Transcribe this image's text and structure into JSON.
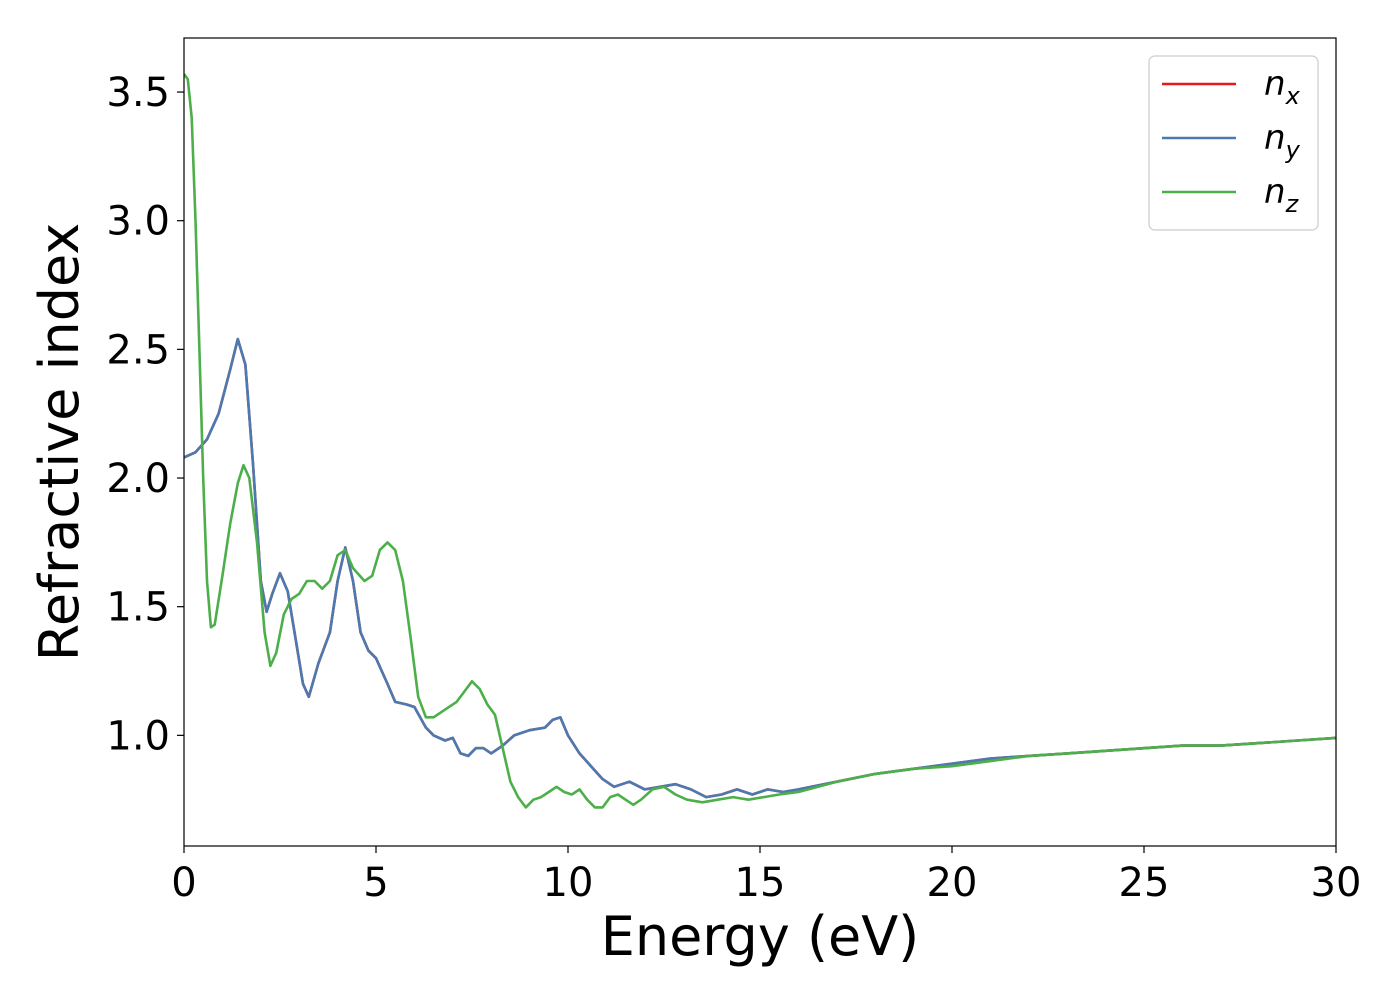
{
  "chart_data": {
    "type": "line",
    "title": "",
    "xlabel": "Energy (eV)",
    "ylabel": "Refractive index",
    "xlim": [
      0,
      30
    ],
    "ylim": [
      0.57,
      3.71
    ],
    "xticks": [
      0,
      5,
      10,
      15,
      20,
      25,
      30
    ],
    "xtick_labels": [
      "0",
      "5",
      "10",
      "15",
      "20",
      "25",
      "30"
    ],
    "yticks": [
      1.0,
      1.5,
      2.0,
      2.5,
      3.0,
      3.5
    ],
    "ytick_labels": [
      "1.0",
      "1.5",
      "2.0",
      "2.5",
      "3.0",
      "3.5"
    ],
    "grid": false,
    "legend_position": "top-right",
    "series": [
      {
        "name": "n_x",
        "label_base": "n",
        "label_sub": "x",
        "color": "#e41a1c",
        "points": [
          [
            0,
            2.08
          ],
          [
            0.3,
            2.1
          ],
          [
            0.6,
            2.15
          ],
          [
            0.9,
            2.25
          ],
          [
            1.2,
            2.42
          ],
          [
            1.4,
            2.54
          ],
          [
            1.6,
            2.44
          ],
          [
            1.8,
            2.05
          ],
          [
            2.0,
            1.6
          ],
          [
            2.15,
            1.48
          ],
          [
            2.3,
            1.55
          ],
          [
            2.5,
            1.63
          ],
          [
            2.7,
            1.56
          ],
          [
            2.9,
            1.38
          ],
          [
            3.1,
            1.2
          ],
          [
            3.25,
            1.15
          ],
          [
            3.5,
            1.28
          ],
          [
            3.8,
            1.4
          ],
          [
            4.0,
            1.6
          ],
          [
            4.2,
            1.73
          ],
          [
            4.4,
            1.6
          ],
          [
            4.6,
            1.4
          ],
          [
            4.8,
            1.33
          ],
          [
            5.0,
            1.3
          ],
          [
            5.3,
            1.2
          ],
          [
            5.5,
            1.13
          ],
          [
            5.8,
            1.12
          ],
          [
            6.0,
            1.11
          ],
          [
            6.3,
            1.03
          ],
          [
            6.5,
            1.0
          ],
          [
            6.8,
            0.98
          ],
          [
            7.0,
            0.99
          ],
          [
            7.2,
            0.93
          ],
          [
            7.4,
            0.92
          ],
          [
            7.6,
            0.95
          ],
          [
            7.8,
            0.95
          ],
          [
            8.0,
            0.93
          ],
          [
            8.3,
            0.96
          ],
          [
            8.6,
            1.0
          ],
          [
            9.0,
            1.02
          ],
          [
            9.4,
            1.03
          ],
          [
            9.6,
            1.06
          ],
          [
            9.8,
            1.07
          ],
          [
            10.0,
            1.0
          ],
          [
            10.3,
            0.93
          ],
          [
            10.6,
            0.88
          ],
          [
            10.9,
            0.83
          ],
          [
            11.2,
            0.8
          ],
          [
            11.6,
            0.82
          ],
          [
            12.0,
            0.79
          ],
          [
            12.4,
            0.8
          ],
          [
            12.8,
            0.81
          ],
          [
            13.2,
            0.79
          ],
          [
            13.6,
            0.76
          ],
          [
            14.0,
            0.77
          ],
          [
            14.4,
            0.79
          ],
          [
            14.8,
            0.77
          ],
          [
            15.2,
            0.79
          ],
          [
            15.6,
            0.78
          ],
          [
            16.0,
            0.79
          ],
          [
            17.0,
            0.82
          ],
          [
            18.0,
            0.85
          ],
          [
            19.0,
            0.87
          ],
          [
            20.0,
            0.89
          ],
          [
            21.0,
            0.91
          ],
          [
            22.0,
            0.92
          ],
          [
            23.0,
            0.93
          ],
          [
            24.0,
            0.94
          ],
          [
            25.0,
            0.95
          ],
          [
            26.0,
            0.96
          ],
          [
            27.0,
            0.96
          ],
          [
            28.0,
            0.97
          ],
          [
            29.0,
            0.98
          ],
          [
            30.0,
            0.99
          ]
        ]
      },
      {
        "name": "n_y",
        "label_base": "n",
        "label_sub": "y",
        "color": "#4a7ab0",
        "points": [
          [
            0,
            2.08
          ],
          [
            0.3,
            2.1
          ],
          [
            0.6,
            2.15
          ],
          [
            0.9,
            2.25
          ],
          [
            1.2,
            2.42
          ],
          [
            1.4,
            2.54
          ],
          [
            1.6,
            2.44
          ],
          [
            1.8,
            2.05
          ],
          [
            2.0,
            1.6
          ],
          [
            2.15,
            1.48
          ],
          [
            2.3,
            1.55
          ],
          [
            2.5,
            1.63
          ],
          [
            2.7,
            1.56
          ],
          [
            2.9,
            1.38
          ],
          [
            3.1,
            1.2
          ],
          [
            3.25,
            1.15
          ],
          [
            3.5,
            1.28
          ],
          [
            3.8,
            1.4
          ],
          [
            4.0,
            1.6
          ],
          [
            4.2,
            1.73
          ],
          [
            4.4,
            1.6
          ],
          [
            4.6,
            1.4
          ],
          [
            4.8,
            1.33
          ],
          [
            5.0,
            1.3
          ],
          [
            5.3,
            1.2
          ],
          [
            5.5,
            1.13
          ],
          [
            5.8,
            1.12
          ],
          [
            6.0,
            1.11
          ],
          [
            6.3,
            1.03
          ],
          [
            6.5,
            1.0
          ],
          [
            6.8,
            0.98
          ],
          [
            7.0,
            0.99
          ],
          [
            7.2,
            0.93
          ],
          [
            7.4,
            0.92
          ],
          [
            7.6,
            0.95
          ],
          [
            7.8,
            0.95
          ],
          [
            8.0,
            0.93
          ],
          [
            8.3,
            0.96
          ],
          [
            8.6,
            1.0
          ],
          [
            9.0,
            1.02
          ],
          [
            9.4,
            1.03
          ],
          [
            9.6,
            1.06
          ],
          [
            9.8,
            1.07
          ],
          [
            10.0,
            1.0
          ],
          [
            10.3,
            0.93
          ],
          [
            10.6,
            0.88
          ],
          [
            10.9,
            0.83
          ],
          [
            11.2,
            0.8
          ],
          [
            11.6,
            0.82
          ],
          [
            12.0,
            0.79
          ],
          [
            12.4,
            0.8
          ],
          [
            12.8,
            0.81
          ],
          [
            13.2,
            0.79
          ],
          [
            13.6,
            0.76
          ],
          [
            14.0,
            0.77
          ],
          [
            14.4,
            0.79
          ],
          [
            14.8,
            0.77
          ],
          [
            15.2,
            0.79
          ],
          [
            15.6,
            0.78
          ],
          [
            16.0,
            0.79
          ],
          [
            17.0,
            0.82
          ],
          [
            18.0,
            0.85
          ],
          [
            19.0,
            0.87
          ],
          [
            20.0,
            0.89
          ],
          [
            21.0,
            0.91
          ],
          [
            22.0,
            0.92
          ],
          [
            23.0,
            0.93
          ],
          [
            24.0,
            0.94
          ],
          [
            25.0,
            0.95
          ],
          [
            26.0,
            0.96
          ],
          [
            27.0,
            0.96
          ],
          [
            28.0,
            0.97
          ],
          [
            29.0,
            0.98
          ],
          [
            30.0,
            0.99
          ]
        ]
      },
      {
        "name": "n_z",
        "label_base": "n",
        "label_sub": "z",
        "color": "#4daf4a",
        "points": [
          [
            0,
            3.57
          ],
          [
            0.1,
            3.55
          ],
          [
            0.2,
            3.4
          ],
          [
            0.3,
            3.0
          ],
          [
            0.4,
            2.5
          ],
          [
            0.5,
            2.0
          ],
          [
            0.6,
            1.6
          ],
          [
            0.7,
            1.42
          ],
          [
            0.8,
            1.43
          ],
          [
            1.0,
            1.62
          ],
          [
            1.2,
            1.82
          ],
          [
            1.4,
            1.98
          ],
          [
            1.55,
            2.05
          ],
          [
            1.7,
            2.0
          ],
          [
            1.9,
            1.75
          ],
          [
            2.1,
            1.4
          ],
          [
            2.25,
            1.27
          ],
          [
            2.4,
            1.32
          ],
          [
            2.6,
            1.47
          ],
          [
            2.8,
            1.53
          ],
          [
            3.0,
            1.55
          ],
          [
            3.2,
            1.6
          ],
          [
            3.4,
            1.6
          ],
          [
            3.6,
            1.57
          ],
          [
            3.8,
            1.6
          ],
          [
            4.0,
            1.7
          ],
          [
            4.2,
            1.72
          ],
          [
            4.4,
            1.65
          ],
          [
            4.7,
            1.6
          ],
          [
            4.9,
            1.62
          ],
          [
            5.1,
            1.72
          ],
          [
            5.3,
            1.75
          ],
          [
            5.5,
            1.72
          ],
          [
            5.7,
            1.6
          ],
          [
            5.9,
            1.38
          ],
          [
            6.1,
            1.15
          ],
          [
            6.3,
            1.07
          ],
          [
            6.5,
            1.07
          ],
          [
            6.8,
            1.1
          ],
          [
            7.1,
            1.13
          ],
          [
            7.3,
            1.17
          ],
          [
            7.5,
            1.21
          ],
          [
            7.7,
            1.18
          ],
          [
            7.9,
            1.12
          ],
          [
            8.1,
            1.08
          ],
          [
            8.3,
            0.95
          ],
          [
            8.5,
            0.82
          ],
          [
            8.7,
            0.76
          ],
          [
            8.9,
            0.72
          ],
          [
            9.1,
            0.75
          ],
          [
            9.3,
            0.76
          ],
          [
            9.5,
            0.78
          ],
          [
            9.7,
            0.8
          ],
          [
            9.9,
            0.78
          ],
          [
            10.1,
            0.77
          ],
          [
            10.3,
            0.79
          ],
          [
            10.5,
            0.75
          ],
          [
            10.7,
            0.72
          ],
          [
            10.9,
            0.72
          ],
          [
            11.1,
            0.76
          ],
          [
            11.3,
            0.77
          ],
          [
            11.5,
            0.75
          ],
          [
            11.7,
            0.73
          ],
          [
            11.9,
            0.75
          ],
          [
            12.2,
            0.79
          ],
          [
            12.5,
            0.8
          ],
          [
            12.8,
            0.77
          ],
          [
            13.1,
            0.75
          ],
          [
            13.5,
            0.74
          ],
          [
            13.9,
            0.75
          ],
          [
            14.3,
            0.76
          ],
          [
            14.7,
            0.75
          ],
          [
            15.1,
            0.76
          ],
          [
            15.5,
            0.77
          ],
          [
            16.0,
            0.78
          ],
          [
            17.0,
            0.82
          ],
          [
            18.0,
            0.85
          ],
          [
            19.0,
            0.87
          ],
          [
            20.0,
            0.88
          ],
          [
            21.0,
            0.9
          ],
          [
            22.0,
            0.92
          ],
          [
            23.0,
            0.93
          ],
          [
            24.0,
            0.94
          ],
          [
            25.0,
            0.95
          ],
          [
            26.0,
            0.96
          ],
          [
            27.0,
            0.96
          ],
          [
            28.0,
            0.97
          ],
          [
            29.0,
            0.98
          ],
          [
            30.0,
            0.99
          ]
        ]
      }
    ]
  }
}
